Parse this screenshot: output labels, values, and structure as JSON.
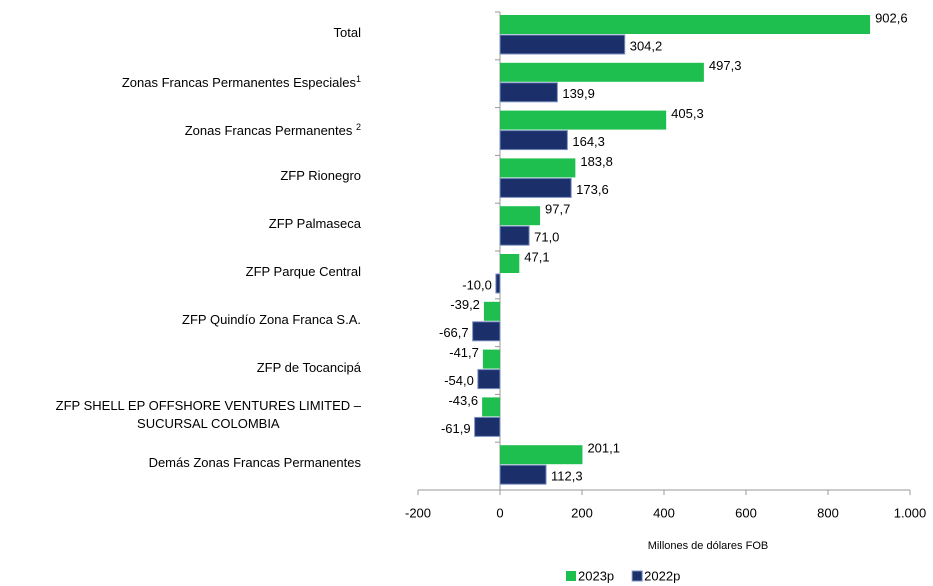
{
  "chart_data": {
    "type": "bar",
    "orientation": "horizontal",
    "x_label": "Millones de dólares FOB",
    "categories": [
      "Total",
      "Zonas Francas Permanentes Especiales",
      "Zonas Francas Permanentes ",
      "ZFP Rionegro",
      "ZFP Palmaseca",
      "ZFP Parque Central",
      "ZFP Quindío Zona Franca S.A.",
      "ZFP de Tocancipá",
      "ZFP SHELL EP OFFSHORE VENTURES LIMITED –\nSUCURSAL COLOMBIA",
      "Demás Zonas Francas Permanentes"
    ],
    "category_superscripts": [
      null,
      "1",
      "2",
      null,
      null,
      null,
      null,
      null,
      null,
      null
    ],
    "series": [
      {
        "name": "2023p",
        "color": "#1fbf4f",
        "values": [
          902.6,
          497.3,
          405.3,
          183.8,
          97.7,
          47.1,
          -39.2,
          -41.7,
          -43.6,
          201.1
        ],
        "value_labels": [
          "902,6",
          "497,3",
          "405,3",
          "183,8",
          "97,7",
          "47,1",
          "-39,2",
          "-41,7",
          "-43,6",
          "201,1"
        ]
      },
      {
        "name": "2022p",
        "color": "#1b2f6b",
        "values": [
          304.2,
          139.9,
          164.3,
          173.6,
          71.0,
          -10.0,
          -66.7,
          -54.0,
          -61.9,
          112.3
        ],
        "value_labels": [
          "304,2",
          "139,9",
          "164,3",
          "173,6",
          "71,0",
          "-10,0",
          "-66,7",
          "-54,0",
          "-61,9",
          "112,3"
        ]
      }
    ],
    "xlim": [
      -200,
      1000
    ],
    "xticks": [
      -200,
      0,
      200,
      400,
      600,
      800,
      {
        "value": 1000,
        "label": "1.000"
      }
    ],
    "legend": "bottom"
  }
}
